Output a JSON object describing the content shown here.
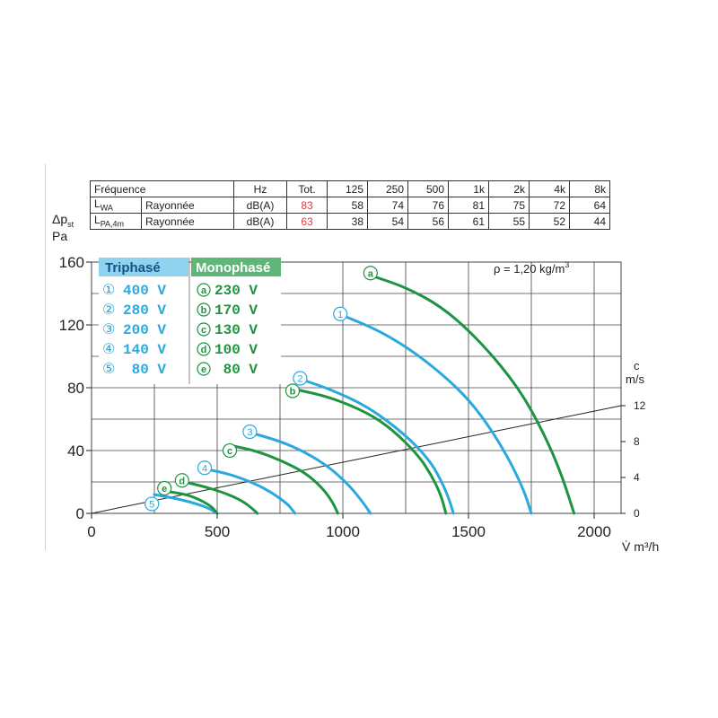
{
  "sound_table": {
    "header": [
      "Fréquence",
      "Hz",
      "Tot.",
      "125",
      "250",
      "500",
      "1k",
      "2k",
      "4k",
      "8k"
    ],
    "rows": [
      {
        "label": "L",
        "sub": "WA",
        "type": "Rayonnée",
        "unit": "dB(A)",
        "tot": "83",
        "values": [
          "58",
          "74",
          "76",
          "81",
          "75",
          "72",
          "64"
        ]
      },
      {
        "label": "L",
        "sub": "PA,4m",
        "type": "Rayonnée",
        "unit": "dB(A)",
        "tot": "63",
        "values": [
          "38",
          "54",
          "56",
          "61",
          "55",
          "52",
          "44"
        ]
      }
    ]
  },
  "y_axis_label": {
    "line1": "Δp",
    "sub": "st",
    "line2": "Pa"
  },
  "x_axis_label": "V̇ m³/h",
  "c_axis_label": {
    "line1": "c",
    "line2": "m/s"
  },
  "density_note": {
    "text": "ρ = 1,20 kg/m",
    "sup": "3"
  },
  "legend": {
    "triphase_title": "Triphasé",
    "monophase_title": "Monophasé",
    "triphase": [
      {
        "mark": "①",
        "label": "400 V"
      },
      {
        "mark": "②",
        "label": "280 V"
      },
      {
        "mark": "③",
        "label": "200 V"
      },
      {
        "mark": "④",
        "label": "140 V"
      },
      {
        "mark": "⑤",
        "label": "80 V"
      }
    ],
    "monophase": [
      {
        "mark": "a",
        "label": "230 V"
      },
      {
        "mark": "b",
        "label": "170 V"
      },
      {
        "mark": "c",
        "label": "130 V"
      },
      {
        "mark": "d",
        "label": "100 V"
      },
      {
        "mark": "e",
        "label": "80 V"
      }
    ]
  },
  "colors": {
    "triphase": "#2aa9df",
    "monophase": "#1e9441",
    "triphase_header_bg": "#8fd3ef",
    "monophase_header_bg": "#5fb678",
    "grid": "#444444",
    "velocity_line": "#222222",
    "tot_text": "#e03a44"
  },
  "chart_data": {
    "type": "line",
    "xlim": [
      0,
      2000
    ],
    "ylim": [
      0,
      160
    ],
    "x_ticks": [
      "0",
      "500",
      "1000",
      "1500",
      "2000"
    ],
    "y_ticks": [
      "0",
      "40",
      "80",
      "120",
      "160"
    ],
    "c_ticks": [
      "0",
      "4",
      "8",
      "12"
    ],
    "grid": true,
    "velocity_line": {
      "x": [
        0,
        2100
      ],
      "y": [
        0,
        13.4
      ],
      "c_scale_max": 13.0
    },
    "series": [
      {
        "name": "①",
        "group": "triphase",
        "marker": {
          "x": 990,
          "y": 127
        },
        "x": [
          1000,
          1150,
          1300,
          1450,
          1550,
          1650,
          1720,
          1750
        ],
        "y": [
          126,
          116,
          101,
          81,
          63,
          38,
          15,
          0
        ]
      },
      {
        "name": "②",
        "group": "triphase",
        "marker": {
          "x": 830,
          "y": 86
        },
        "x": [
          840,
          950,
          1100,
          1250,
          1350,
          1400,
          1425,
          1440
        ],
        "y": [
          85,
          79,
          68,
          50,
          33,
          18,
          8,
          0
        ]
      },
      {
        "name": "③",
        "group": "triphase",
        "marker": {
          "x": 630,
          "y": 52
        },
        "x": [
          640,
          750,
          850,
          950,
          1030,
          1080,
          1110
        ],
        "y": [
          51,
          46,
          39,
          29,
          17,
          7,
          0
        ]
      },
      {
        "name": "④",
        "group": "triphase",
        "marker": {
          "x": 450,
          "y": 29
        },
        "x": [
          460,
          550,
          650,
          720,
          780,
          800,
          810
        ],
        "y": [
          28,
          25,
          19,
          13,
          6,
          2,
          0
        ]
      },
      {
        "name": "⑤",
        "group": "triphase",
        "marker": {
          "x": 240,
          "y": 6
        },
        "x": [
          250,
          350,
          420,
          470,
          500
        ],
        "y": [
          12,
          9,
          6,
          3,
          0
        ]
      },
      {
        "name": "a",
        "group": "monophase",
        "marker": {
          "x": 1110,
          "y": 153
        },
        "x": [
          1120,
          1250,
          1400,
          1550,
          1700,
          1800,
          1870,
          1920
        ],
        "y": [
          151,
          144,
          131,
          109,
          80,
          51,
          25,
          0
        ]
      },
      {
        "name": "b",
        "group": "monophase",
        "marker": {
          "x": 800,
          "y": 78
        },
        "x": [
          810,
          950,
          1100,
          1200,
          1300,
          1350,
          1390,
          1410
        ],
        "y": [
          79,
          74,
          64,
          53,
          37,
          25,
          12,
          0
        ]
      },
      {
        "name": "c",
        "group": "monophase",
        "marker": {
          "x": 550,
          "y": 40
        },
        "x": [
          560,
          650,
          750,
          850,
          920,
          960,
          980
        ],
        "y": [
          43,
          40,
          34,
          26,
          16,
          7,
          0
        ]
      },
      {
        "name": "d",
        "group": "monophase",
        "marker": {
          "x": 360,
          "y": 21
        },
        "x": [
          370,
          450,
          530,
          600,
          640,
          660
        ],
        "y": [
          20,
          17,
          13,
          8,
          3,
          0
        ]
      },
      {
        "name": "e",
        "group": "monophase",
        "marker": {
          "x": 290,
          "y": 16
        },
        "x": [
          300,
          380,
          440,
          480,
          500
        ],
        "y": [
          14,
          12,
          8,
          4,
          0
        ]
      }
    ]
  }
}
